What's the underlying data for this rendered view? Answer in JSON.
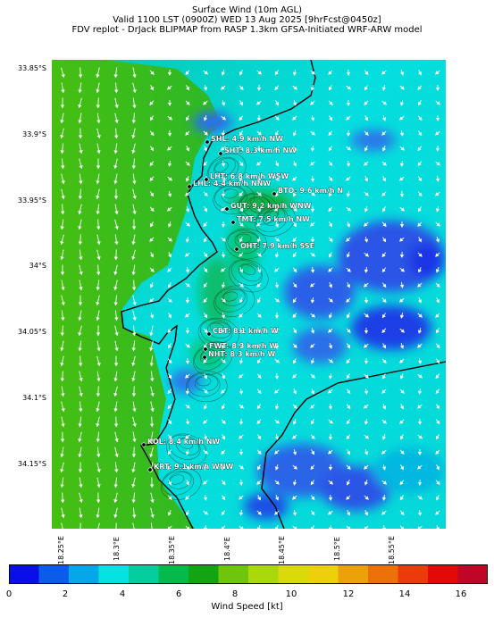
{
  "title": {
    "line1": "Surface Wind (10m AGL)",
    "line2": "Valid 1100 LST (0900Z) WED 13 Aug 2025 [9hrFcst@0450z]",
    "line3": "FDV replot - DrJack BLIPMAP from RASP 1.3km GFSA-Initiated WRF-ARW model"
  },
  "lat_labels": [
    "33.85°S",
    "33.9°S",
    "33.95°S",
    "34°S",
    "34.05°S",
    "34.1°S",
    "34.15°S"
  ],
  "lon_labels": [
    "18.25°E",
    "18.3°E",
    "18.35°E",
    "18.4°E",
    "18.45°E",
    "18.5°E",
    "18.55°E"
  ],
  "stations": [
    {
      "code": "SHL",
      "label": "SHL: 4.9 km/h NW"
    },
    {
      "code": "SHT",
      "label": "SHT: 8.3 km/h NW"
    },
    {
      "code": "LHT",
      "label": "LHT: 6.8 km/h WSW"
    },
    {
      "code": "LHL",
      "label": "LHL: 4.4 km/h NNW"
    },
    {
      "code": "BTO",
      "label": "BTO: 9.6 km/h N"
    },
    {
      "code": "GUT",
      "label": "GUT: 9.2 km/h WNW"
    },
    {
      "code": "TMT",
      "label": "TMT: 7.5 km/h NW"
    },
    {
      "code": "OHT",
      "label": "OHT: 7.9 km/h SSE"
    },
    {
      "code": "CBT",
      "label": "CBT: 8.1 km/h W"
    },
    {
      "code": "FWT",
      "label": "FWT: 8.3 km/h W"
    },
    {
      "code": "NHT",
      "label": "NHT: 8.3 km/h W"
    },
    {
      "code": "KOL",
      "label": "KOL: 8.4 km/h NW"
    },
    {
      "code": "KRT",
      "label": "KRT: 9.1 km/h WNW"
    }
  ],
  "colorbar": {
    "label": "Wind Speed [kt]",
    "ticks": [
      "0",
      "2",
      "4",
      "6",
      "8",
      "10",
      "12",
      "14",
      "16"
    ],
    "colors": [
      "#0a0fea",
      "#0b5ce8",
      "#05a7e8",
      "#05e2e2",
      "#03cf9e",
      "#05b94a",
      "#12a413",
      "#6ec50b",
      "#a9d80b",
      "#d9da08",
      "#ecd10a",
      "#eba20a",
      "#ec710a",
      "#ec3b0a",
      "#e50808",
      "#bf0626"
    ]
  },
  "wind_field": {
    "dominant_direction": "N",
    "offshore_colors": [
      "#3ebe1a",
      "#1fb838",
      "#0fc07b"
    ],
    "land_colors": [
      "#06d6d6",
      "#3272e8",
      "#1a4ce6"
    ]
  }
}
